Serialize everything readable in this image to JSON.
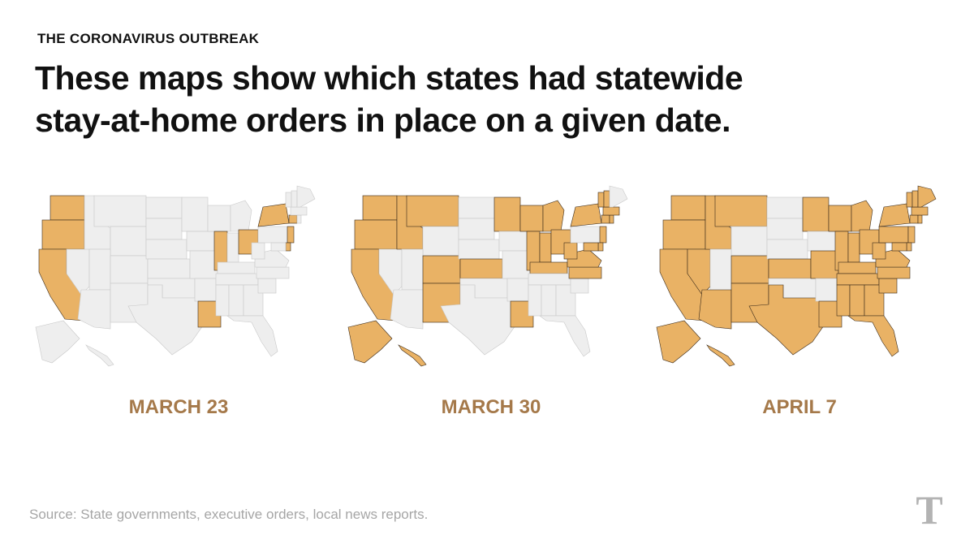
{
  "header": {
    "kicker": "THE CORONAVIRUS OUTBREAK",
    "headline": "These maps show which states had statewide stay-at-home orders in place on a given date."
  },
  "colors": {
    "order_in_place": "#e9b265",
    "no_order": "#eeeeee",
    "date_label": "#a5794a",
    "source_text": "#a6a6a6"
  },
  "maps": [
    {
      "date": "MARCH 23",
      "states_with_order": [
        "WA",
        "OR",
        "CA",
        "IL",
        "OH",
        "NY",
        "NJ",
        "CT",
        "DE",
        "LA"
      ]
    },
    {
      "date": "MARCH 30",
      "states_with_order": [
        "WA",
        "OR",
        "CA",
        "ID",
        "MT",
        "CO",
        "NM",
        "KS",
        "MN",
        "WI",
        "MI",
        "IL",
        "IN",
        "OH",
        "KY",
        "WV",
        "VA",
        "NC",
        "MD",
        "DE",
        "NJ",
        "NY",
        "CT",
        "RI",
        "MA",
        "VT",
        "NH",
        "LA",
        "AK",
        "HI"
      ]
    },
    {
      "date": "APRIL 7",
      "states_with_order": [
        "WA",
        "OR",
        "CA",
        "NV",
        "AZ",
        "NM",
        "ID",
        "MT",
        "CO",
        "KS",
        "TX",
        "MN",
        "WI",
        "MI",
        "IL",
        "IN",
        "OH",
        "KY",
        "TN",
        "MS",
        "AL",
        "GA",
        "FL",
        "SC",
        "NC",
        "VA",
        "WV",
        "MD",
        "DE",
        "PA",
        "NJ",
        "NY",
        "CT",
        "RI",
        "MA",
        "VT",
        "NH",
        "ME",
        "LA",
        "MO",
        "AK",
        "HI"
      ]
    }
  ],
  "footer": {
    "source": "Source: State governments, executive orders, local news reports.",
    "logo": "T"
  }
}
